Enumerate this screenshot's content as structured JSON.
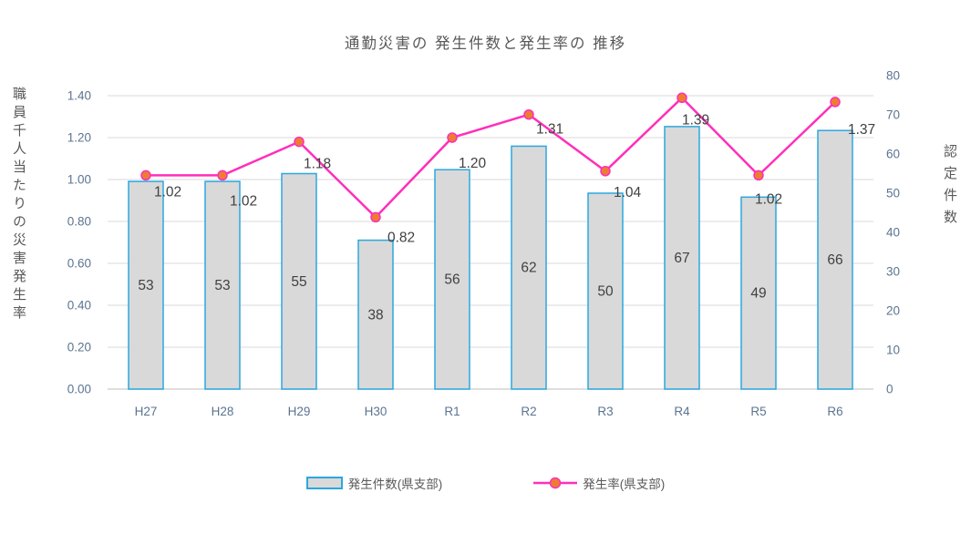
{
  "title": "通勤災害の 発生件数と発生率の 推移",
  "chart_data": {
    "type": "combo",
    "categories": [
      "H27",
      "H28",
      "H29",
      "H30",
      "R1",
      "R2",
      "R3",
      "R4",
      "R5",
      "R6"
    ],
    "series": [
      {
        "name": "発生件数(県支部)",
        "type": "bar",
        "axis": "right",
        "values": [
          53,
          53,
          55,
          38,
          56,
          62,
          50,
          67,
          49,
          66
        ],
        "labels": [
          "53",
          "53",
          "55",
          "38",
          "56",
          "62",
          "50",
          "67",
          "49",
          "66"
        ]
      },
      {
        "name": "発生率(県支部)",
        "type": "line",
        "axis": "left",
        "values": [
          1.02,
          1.02,
          1.18,
          0.82,
          1.2,
          1.31,
          1.04,
          1.39,
          1.02,
          1.37
        ],
        "labels": [
          "1.02",
          "1.02",
          "1.18",
          "0.82",
          "1.20",
          "1.31",
          "1.04",
          "1.39",
          "1.02",
          "1.37"
        ]
      }
    ],
    "left_axis": {
      "title": "職員千人当たりの災害発生率",
      "min": 0,
      "max": 1.4,
      "step": 0.2,
      "tick_labels": [
        "0.00",
        "0.20",
        "0.40",
        "0.60",
        "0.80",
        "1.00",
        "1.20",
        "1.40"
      ]
    },
    "right_axis": {
      "title": "認定件数",
      "min": 0,
      "max": 80,
      "step": 10,
      "tick_labels": [
        "0",
        "10",
        "20",
        "30",
        "40",
        "50",
        "60",
        "70",
        "80"
      ]
    },
    "grid": "horizontal",
    "legend_position": "bottom"
  },
  "legend": {
    "items": [
      {
        "label": "発生件数(県支部)",
        "swatch": "bar"
      },
      {
        "label": "発生率(県支部)",
        "swatch": "line-dot"
      }
    ]
  },
  "colors": {
    "bar_fill": "#D9D9D9",
    "bar_border": "#2BA7DF",
    "line": "#FF2FB9",
    "marker_fill": "#ED7D31",
    "grid": "#DADADA",
    "axis_line": "#C9C9C9",
    "tick_text": "#5B7490",
    "title_text": "#595959",
    "data_label": "#404040"
  }
}
